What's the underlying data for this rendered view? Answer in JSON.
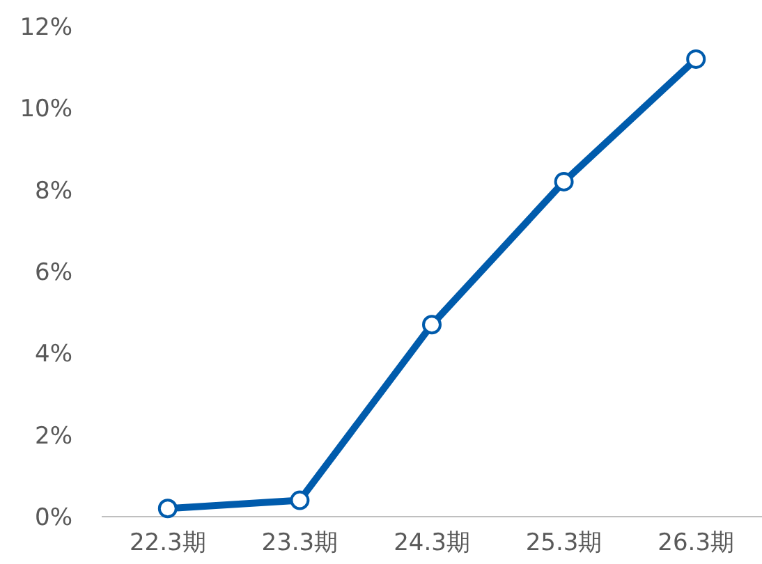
{
  "chart_data": {
    "type": "line",
    "categories": [
      "22.3期",
      "23.3期",
      "24.3期",
      "25.3期",
      "26.3期"
    ],
    "series": [
      {
        "color": "#005bac",
        "values": [
          0.2,
          0.4,
          4.7,
          8.2,
          11.2
        ]
      }
    ],
    "ylim": [
      0,
      12
    ],
    "yticks": [
      {
        "value": 0,
        "label": "0%"
      },
      {
        "value": 2,
        "label": "2%"
      },
      {
        "value": 4,
        "label": "4%"
      },
      {
        "value": 6,
        "label": "6%"
      },
      {
        "value": 8,
        "label": "8%"
      },
      {
        "value": 10,
        "label": "10%"
      },
      {
        "value": 12,
        "label": "12%"
      }
    ],
    "marker": "circle",
    "line_style": "solid"
  }
}
